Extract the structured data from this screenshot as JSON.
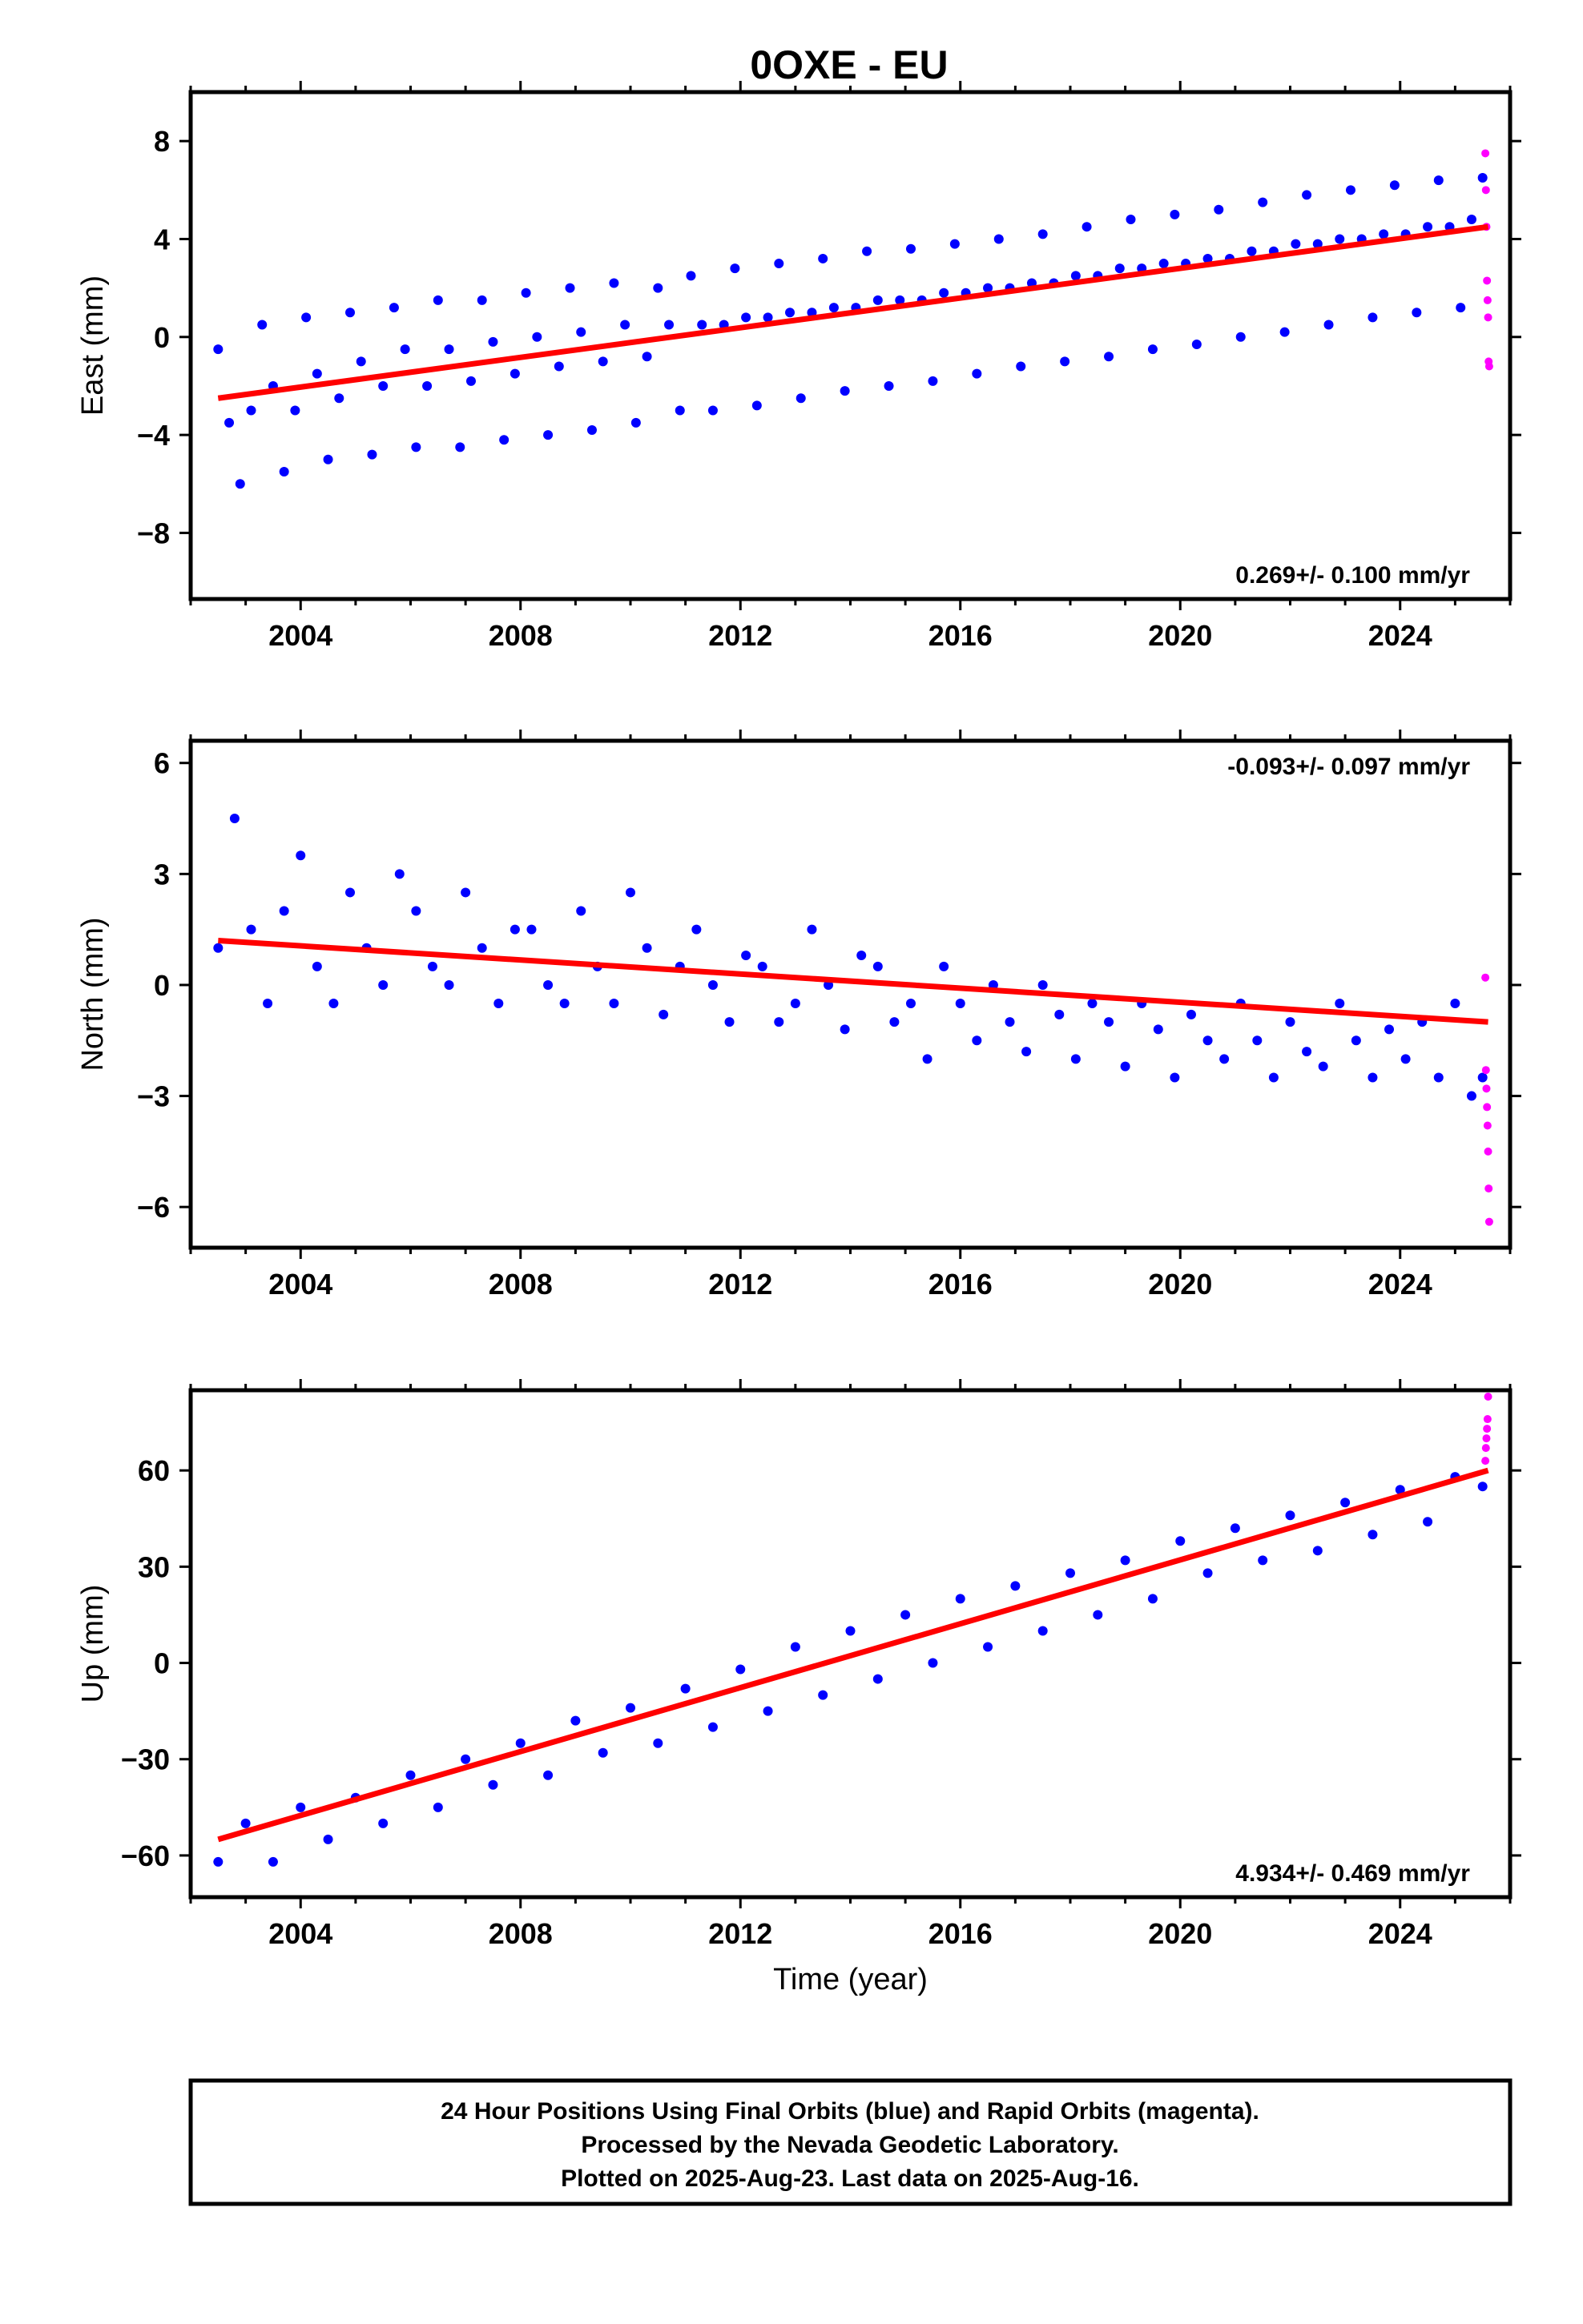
{
  "title": "0OXE - EU",
  "chart_data": [
    {
      "type": "scatter",
      "component": "east",
      "ylabel": "East (mm)",
      "xlabel": "",
      "xlim": [
        2002,
        2026
      ],
      "ylim": [
        -10.7,
        10
      ],
      "yticks": [
        8,
        4,
        0,
        -4,
        -8
      ],
      "ytick_labels": [
        "8",
        "4",
        "0",
        "−4",
        "−8"
      ],
      "xticks": [
        2004,
        2008,
        2012,
        2016,
        2020,
        2024
      ],
      "xtick_labels": [
        "2004",
        "2008",
        "2012",
        "2016",
        "2020",
        "2024"
      ],
      "rate": "0.269+/- 0.100 mm/yr",
      "rate_position": "bottom-right",
      "grid": false,
      "series": [
        {
          "role": "final-orbits",
          "color": "#0000ff",
          "x": [
            2002.5,
            2002.7,
            2002.9,
            2003.1,
            2003.3,
            2003.5,
            2003.7,
            2003.9,
            2004.1,
            2004.3,
            2004.5,
            2004.7,
            2004.9,
            2005.1,
            2005.3,
            2005.5,
            2005.7,
            2005.9,
            2006.1,
            2006.3,
            2006.5,
            2006.7,
            2006.9,
            2007.1,
            2007.3,
            2007.5,
            2007.7,
            2007.9,
            2008.1,
            2008.3,
            2008.5,
            2008.7,
            2008.9,
            2009.1,
            2009.3,
            2009.5,
            2009.7,
            2009.9,
            2010.1,
            2010.3,
            2010.5,
            2010.7,
            2010.9,
            2011.1,
            2011.3,
            2011.5,
            2011.7,
            2011.9,
            2012.1,
            2012.3,
            2012.5,
            2012.7,
            2012.9,
            2013.1,
            2013.3,
            2013.5,
            2013.7,
            2013.9,
            2014.1,
            2014.3,
            2014.5,
            2014.7,
            2014.9,
            2015.1,
            2015.3,
            2015.5,
            2015.7,
            2015.9,
            2016.1,
            2016.3,
            2016.5,
            2016.7,
            2016.9,
            2017.1,
            2017.3,
            2017.5,
            2017.7,
            2017.9,
            2018.1,
            2018.3,
            2018.5,
            2018.7,
            2018.9,
            2019.1,
            2019.3,
            2019.5,
            2019.7,
            2019.9,
            2020.1,
            2020.3,
            2020.5,
            2020.7,
            2020.9,
            2021.1,
            2021.3,
            2021.5,
            2021.7,
            2021.9,
            2022.1,
            2022.3,
            2022.5,
            2022.7,
            2022.9,
            2023.1,
            2023.3,
            2023.5,
            2023.7,
            2023.9,
            2024.1,
            2024.3,
            2024.5,
            2024.7,
            2024.9,
            2025.1,
            2025.3,
            2025.5
          ],
          "y": [
            -0.5,
            -3.5,
            -6.0,
            -3.0,
            0.5,
            -2.0,
            -5.5,
            -3.0,
            0.8,
            -1.5,
            -5.0,
            -2.5,
            1.0,
            -1.0,
            -4.8,
            -2.0,
            1.2,
            -0.5,
            -4.5,
            -2.0,
            1.5,
            -0.5,
            -4.5,
            -1.8,
            1.5,
            -0.2,
            -4.2,
            -1.5,
            1.8,
            0.0,
            -4.0,
            -1.2,
            2.0,
            0.2,
            -3.8,
            -1.0,
            2.2,
            0.5,
            -3.5,
            -0.8,
            2.0,
            0.5,
            -3.0,
            2.5,
            0.5,
            -3.0,
            0.5,
            2.8,
            0.8,
            -2.8,
            0.8,
            3.0,
            1.0,
            -2.5,
            1.0,
            3.2,
            1.2,
            -2.2,
            1.2,
            3.5,
            1.5,
            -2.0,
            1.5,
            3.6,
            1.5,
            -1.8,
            1.8,
            3.8,
            1.8,
            -1.5,
            2.0,
            4.0,
            2.0,
            -1.2,
            2.2,
            4.2,
            2.2,
            -1.0,
            2.5,
            4.5,
            2.5,
            -0.8,
            2.8,
            4.8,
            2.8,
            -0.5,
            3.0,
            5.0,
            3.0,
            -0.3,
            3.2,
            5.2,
            3.2,
            0.0,
            3.5,
            5.5,
            3.5,
            0.2,
            3.8,
            5.8,
            3.8,
            0.5,
            4.0,
            6.0,
            4.0,
            0.8,
            4.2,
            6.2,
            4.2,
            1.0,
            4.5,
            6.4,
            4.5,
            1.2,
            4.8,
            6.5
          ]
        },
        {
          "role": "rapid-orbits",
          "color": "#ff00ff",
          "x": [
            2025.55,
            2025.56,
            2025.57,
            2025.58,
            2025.59,
            2025.6,
            2025.61,
            2025.62
          ],
          "y": [
            7.5,
            6.0,
            4.5,
            2.3,
            1.5,
            0.8,
            -1.0,
            -1.2
          ]
        },
        {
          "role": "model-fit",
          "color": "#ff0000",
          "x": [
            2002.5,
            2025.6
          ],
          "y": [
            -2.5,
            4.5
          ]
        }
      ]
    },
    {
      "type": "scatter",
      "component": "north",
      "ylabel": "North (mm)",
      "xlabel": "",
      "xlim": [
        2002,
        2026
      ],
      "ylim": [
        -7.1,
        6.6
      ],
      "yticks": [
        6,
        3,
        0,
        -3,
        -6
      ],
      "ytick_labels": [
        "6",
        "3",
        "0",
        "−3",
        "−6"
      ],
      "xticks": [
        2004,
        2008,
        2012,
        2016,
        2020,
        2024
      ],
      "xtick_labels": [
        "2004",
        "2008",
        "2012",
        "2016",
        "2020",
        "2024"
      ],
      "rate": "-0.093+/- 0.097 mm/yr",
      "rate_position": "top-right",
      "grid": false,
      "series": [
        {
          "role": "final-orbits",
          "color": "#0000ff",
          "x": [
            2002.5,
            2002.8,
            2003.1,
            2003.4,
            2003.7,
            2004.0,
            2004.3,
            2004.6,
            2004.9,
            2005.2,
            2005.5,
            2005.8,
            2006.1,
            2006.4,
            2006.7,
            2007.0,
            2007.3,
            2007.6,
            2007.9,
            2008.2,
            2008.5,
            2008.8,
            2009.1,
            2009.4,
            2009.7,
            2010.0,
            2010.3,
            2010.6,
            2010.9,
            2011.2,
            2011.5,
            2011.8,
            2012.1,
            2012.4,
            2012.7,
            2013.0,
            2013.3,
            2013.6,
            2013.9,
            2014.2,
            2014.5,
            2014.8,
            2015.1,
            2015.4,
            2015.7,
            2016.0,
            2016.3,
            2016.6,
            2016.9,
            2017.2,
            2017.5,
            2017.8,
            2018.1,
            2018.4,
            2018.7,
            2019.0,
            2019.3,
            2019.6,
            2019.9,
            2020.2,
            2020.5,
            2020.8,
            2021.1,
            2021.4,
            2021.7,
            2022.0,
            2022.3,
            2022.6,
            2022.9,
            2023.2,
            2023.5,
            2023.8,
            2024.1,
            2024.4,
            2024.7,
            2025.0,
            2025.3,
            2025.5
          ],
          "y": [
            1.0,
            4.5,
            1.5,
            -0.5,
            2.0,
            3.5,
            0.5,
            -0.5,
            2.5,
            1.0,
            0.0,
            3.0,
            2.0,
            0.5,
            0.0,
            2.5,
            1.0,
            -0.5,
            1.5,
            1.5,
            0.0,
            -0.5,
            2.0,
            0.5,
            -0.5,
            2.5,
            1.0,
            -0.8,
            0.5,
            1.5,
            0.0,
            -1.0,
            0.8,
            0.5,
            -1.0,
            -0.5,
            1.5,
            0.0,
            -1.2,
            0.8,
            0.5,
            -1.0,
            -0.5,
            -2.0,
            0.5,
            -0.5,
            -1.5,
            0.0,
            -1.0,
            -1.8,
            0.0,
            -0.8,
            -2.0,
            -0.5,
            -1.0,
            -2.2,
            -0.5,
            -1.2,
            -2.5,
            -0.8,
            -1.5,
            -2.0,
            -0.5,
            -1.5,
            -2.5,
            -1.0,
            -1.8,
            -2.2,
            -0.5,
            -1.5,
            -2.5,
            -1.2,
            -2.0,
            -1.0,
            -2.5,
            -0.5,
            -3.0,
            -2.5
          ]
        },
        {
          "role": "rapid-orbits",
          "color": "#ff00ff",
          "x": [
            2025.55,
            2025.56,
            2025.57,
            2025.58,
            2025.59,
            2025.6,
            2025.61,
            2025.62
          ],
          "y": [
            0.2,
            -2.3,
            -2.8,
            -3.3,
            -3.8,
            -4.5,
            -5.5,
            -6.4
          ]
        },
        {
          "role": "model-fit",
          "color": "#ff0000",
          "x": [
            2002.5,
            2025.6
          ],
          "y": [
            1.2,
            -1.0
          ]
        }
      ]
    },
    {
      "type": "scatter",
      "component": "up",
      "ylabel": "Up (mm)",
      "xlabel": "Time (year)",
      "xlim": [
        2002,
        2026
      ],
      "ylim": [
        -73,
        85
      ],
      "yticks": [
        60,
        30,
        0,
        -30,
        -60
      ],
      "ytick_labels": [
        "60",
        "30",
        "0",
        "−30",
        "−60"
      ],
      "xticks": [
        2004,
        2008,
        2012,
        2016,
        2020,
        2024
      ],
      "xtick_labels": [
        "2004",
        "2008",
        "2012",
        "2016",
        "2020",
        "2024"
      ],
      "rate": "4.934+/- 0.469 mm/yr",
      "rate_position": "bottom-right",
      "grid": false,
      "series": [
        {
          "role": "final-orbits",
          "color": "#0000ff",
          "x": [
            2002.5,
            2003.0,
            2003.5,
            2004.0,
            2004.5,
            2005.0,
            2005.5,
            2006.0,
            2006.5,
            2007.0,
            2007.5,
            2008.0,
            2008.5,
            2009.0,
            2009.5,
            2010.0,
            2010.5,
            2011.0,
            2011.5,
            2012.0,
            2012.5,
            2013.0,
            2013.5,
            2014.0,
            2014.5,
            2015.0,
            2015.5,
            2016.0,
            2016.5,
            2017.0,
            2017.5,
            2018.0,
            2018.5,
            2019.0,
            2019.5,
            2020.0,
            2020.5,
            2021.0,
            2021.5,
            2022.0,
            2022.5,
            2023.0,
            2023.5,
            2024.0,
            2024.5,
            2025.0,
            2025.5
          ],
          "y": [
            -62,
            -50,
            -62,
            -45,
            -55,
            -42,
            -50,
            -35,
            -45,
            -30,
            -38,
            -25,
            -35,
            -18,
            -28,
            -14,
            -25,
            -8,
            -20,
            -2,
            -15,
            5,
            -10,
            10,
            -5,
            15,
            0,
            20,
            5,
            24,
            10,
            28,
            15,
            32,
            20,
            38,
            28,
            42,
            32,
            46,
            35,
            50,
            40,
            54,
            44,
            58,
            55
          ]
        },
        {
          "role": "rapid-orbits",
          "color": "#ff00ff",
          "x": [
            2025.55,
            2025.56,
            2025.57,
            2025.58,
            2025.59,
            2025.6
          ],
          "y": [
            63,
            67,
            70,
            73,
            76,
            83
          ]
        },
        {
          "role": "model-fit",
          "color": "#ff0000",
          "x": [
            2002.5,
            2025.6
          ],
          "y": [
            -55,
            60
          ]
        }
      ]
    }
  ],
  "caption": {
    "line1": "24 Hour Positions Using Final Orbits (blue) and Rapid Orbits (magenta).",
    "line2": "Processed by the Nevada Geodetic Laboratory.",
    "line3": "Plotted on 2025-Aug-23. Last data on 2025-Aug-16."
  }
}
